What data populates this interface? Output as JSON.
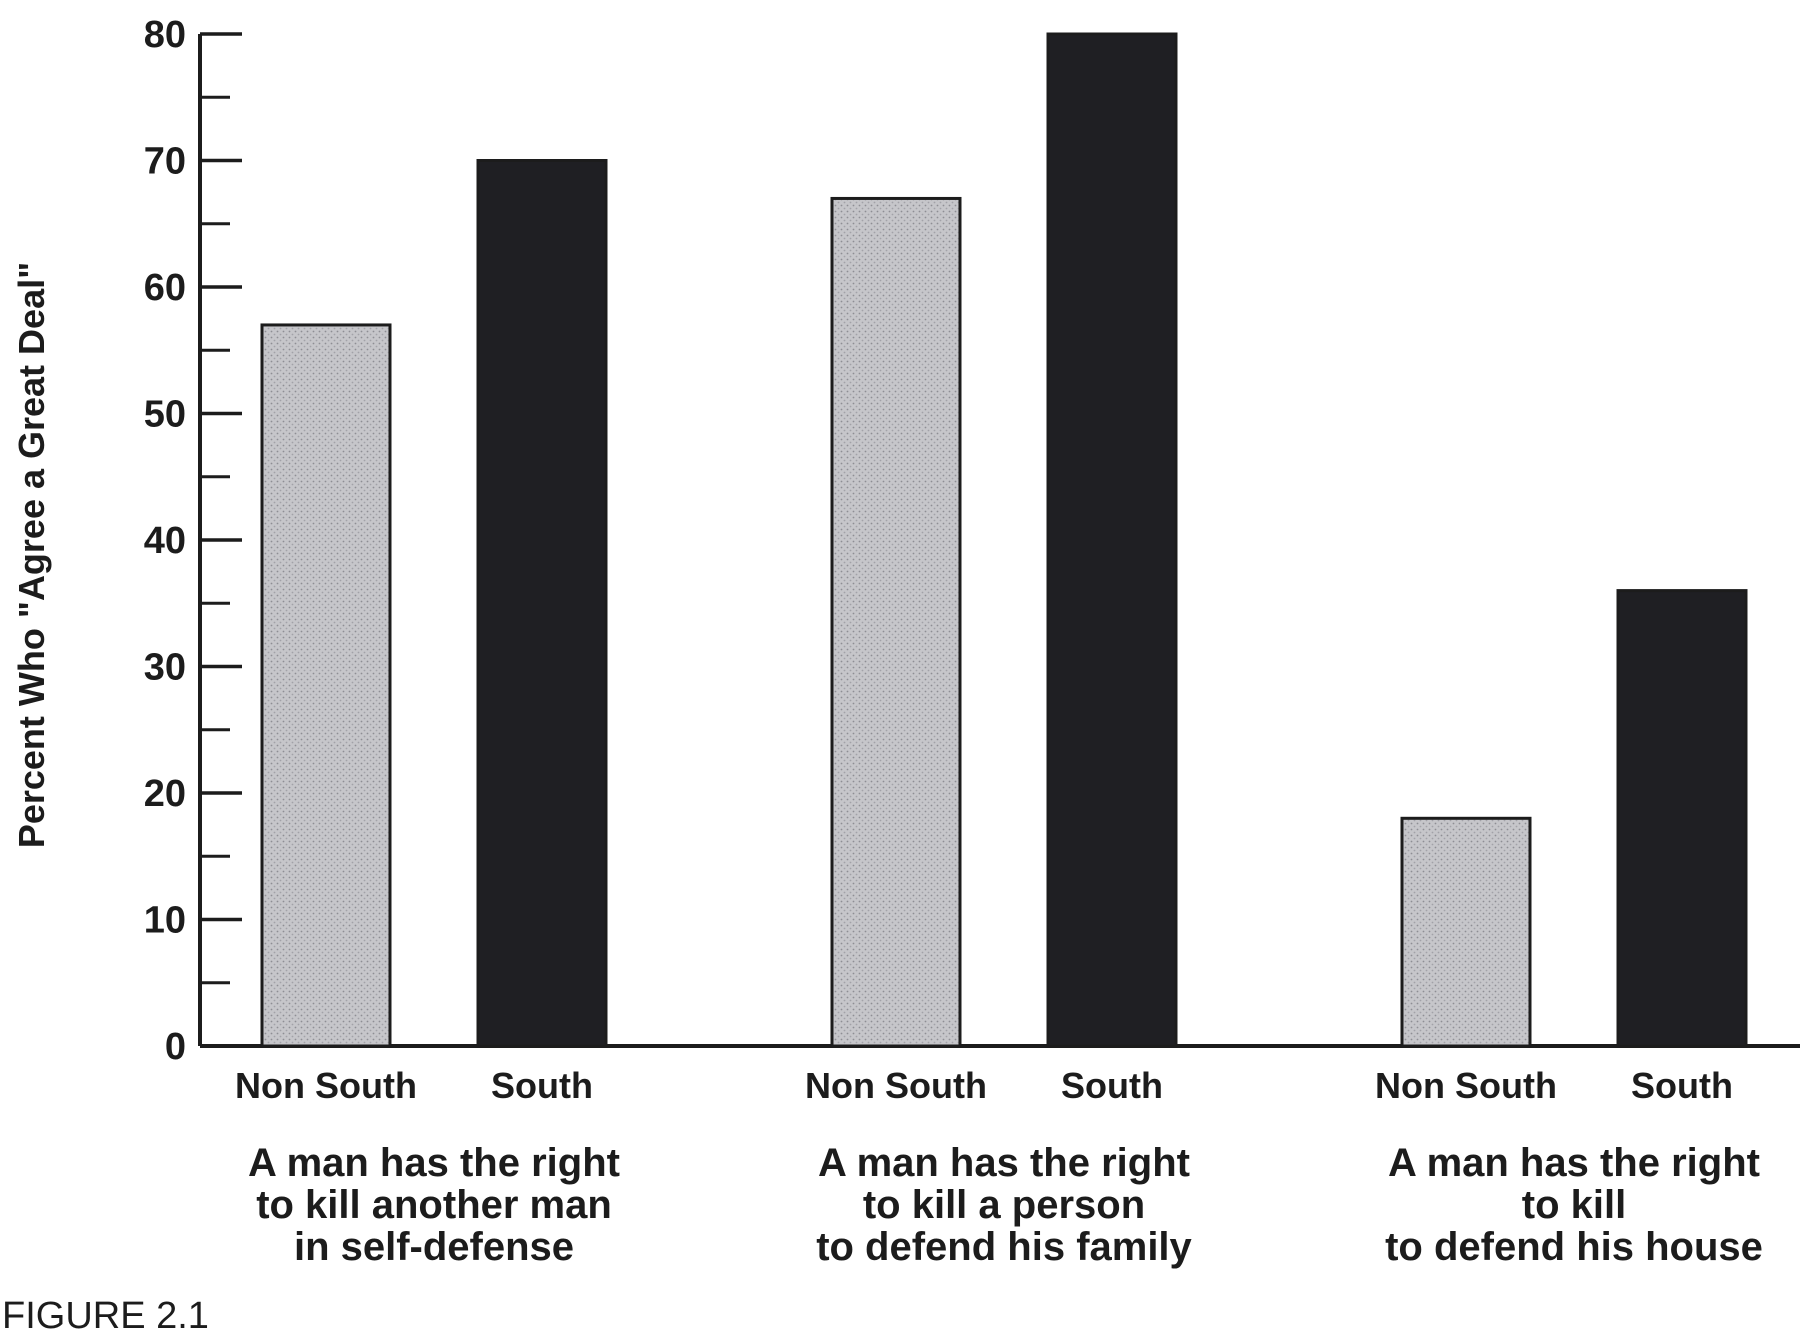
{
  "chart_data": {
    "type": "bar",
    "ylabel": "Percent Who \"Agree a Great Deal\"",
    "xlabel": "",
    "ylim": [
      0,
      80
    ],
    "yticks": [
      0,
      10,
      20,
      30,
      40,
      50,
      60,
      70,
      80
    ],
    "grid": false,
    "groups": [
      {
        "label_lines": [
          "A man has the right",
          "to kill another man",
          "in self-defense"
        ],
        "bars": [
          {
            "name": "Non South",
            "value": 57
          },
          {
            "name": "South",
            "value": 70
          }
        ]
      },
      {
        "label_lines": [
          "A man has the right",
          "to kill a person",
          "to defend his family"
        ],
        "bars": [
          {
            "name": "Non South",
            "value": 67
          },
          {
            "name": "South",
            "value": 80
          }
        ]
      },
      {
        "label_lines": [
          "A man has the right",
          "to kill",
          "to defend his house"
        ],
        "bars": [
          {
            "name": "Non South",
            "value": 18
          },
          {
            "name": "South",
            "value": 36
          }
        ]
      }
    ],
    "colors": {
      "Non South": "#c4c4c8",
      "South": "#1f1f23",
      "axis": "#1c1c1c"
    }
  },
  "caption": "FIGURE 2.1"
}
